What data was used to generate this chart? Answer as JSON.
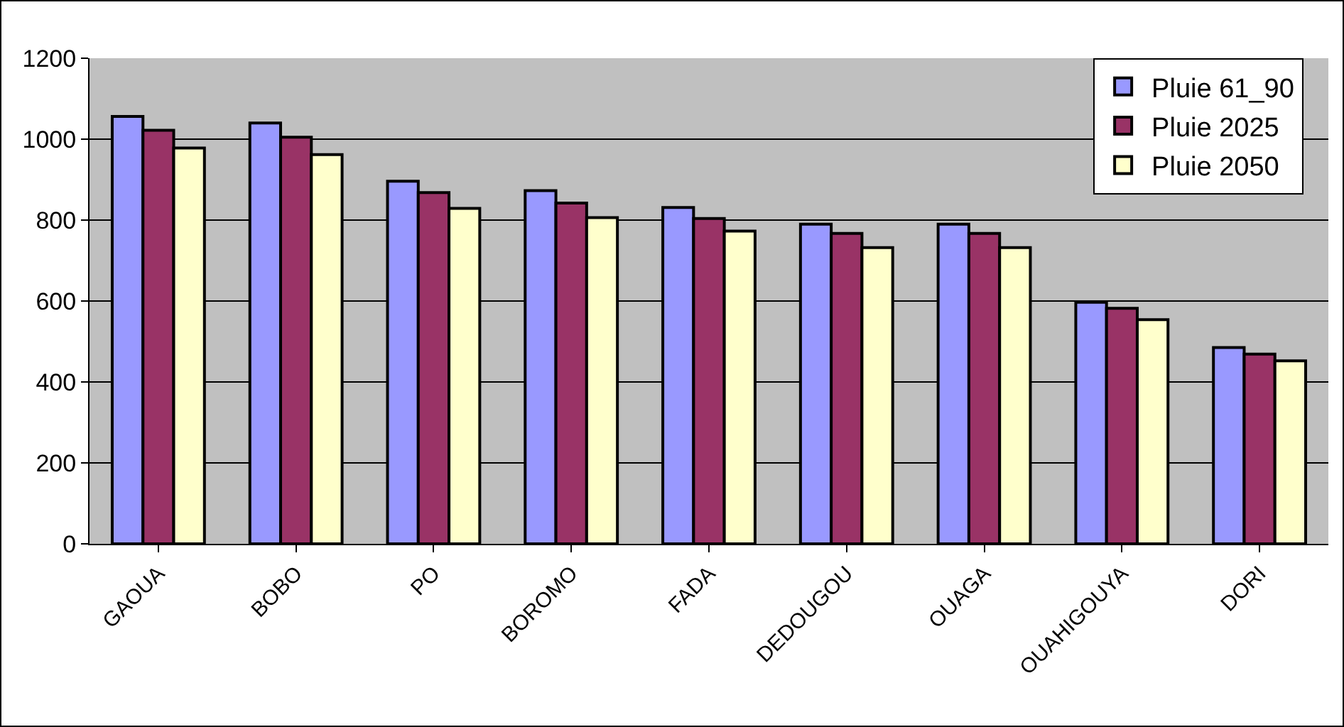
{
  "chart_data": {
    "type": "bar",
    "categories": [
      "GAOUA",
      "BOBO",
      "PO",
      "BOROMO",
      "FADA",
      "DEDOUGOU",
      "OUAGA",
      "OUAHIGOUYA",
      "DORI"
    ],
    "series": [
      {
        "name": "Pluie 61_90",
        "color": "#9999ff",
        "values": [
          1056,
          1040,
          896,
          873,
          831,
          790,
          790,
          597,
          485
        ]
      },
      {
        "name": "Pluie 2025",
        "color": "#993366",
        "values": [
          1022,
          1005,
          868,
          842,
          804,
          767,
          767,
          582,
          469
        ]
      },
      {
        "name": "Pluie 2050",
        "color": "#ffffcc",
        "values": [
          978,
          962,
          829,
          806,
          773,
          732,
          732,
          554,
          452
        ]
      }
    ],
    "ylim": [
      0,
      1200
    ],
    "yticks": [
      0,
      200,
      400,
      600,
      800,
      1000,
      1200
    ],
    "grid": "y",
    "legend": "top right"
  }
}
